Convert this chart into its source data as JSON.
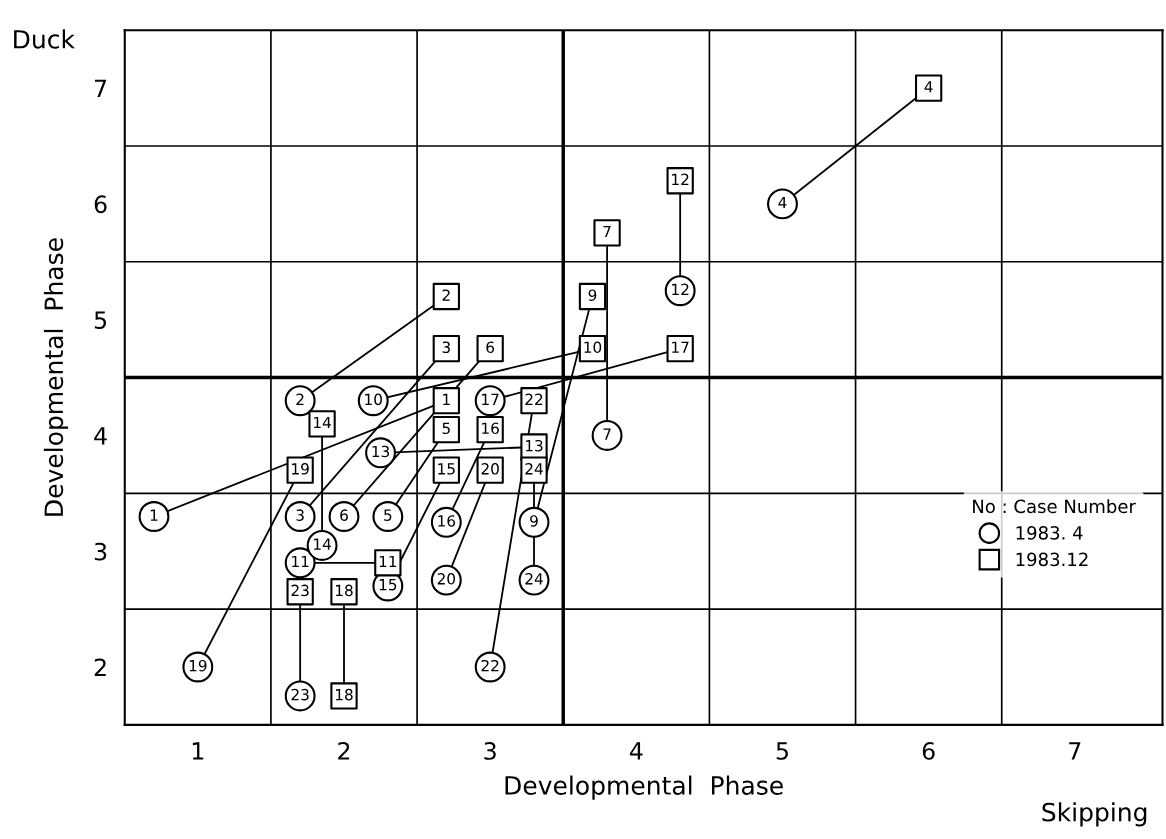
{
  "chart_data": {
    "type": "scatter",
    "xlabel": "Developmental  Phase",
    "ylabel": "Developmental  Phase",
    "legend_title": "No : Case Number",
    "annotations": [
      "Duck",
      "Skipping",
      {
        "text": "1",
        "x": 0.7,
        "y": 3.3
      },
      {
        "text": "2",
        "x": 1.7,
        "y": 4.3
      },
      {
        "text": "3",
        "x": 1.7,
        "y": 3.3
      },
      {
        "text": "4",
        "x": 5.0,
        "y": 6.0
      },
      {
        "text": "5",
        "x": 2.3,
        "y": 3.3
      },
      {
        "text": "6",
        "x": 2.0,
        "y": 3.3
      },
      {
        "text": "7",
        "x": 3.8,
        "y": 4.0
      },
      {
        "text": "9",
        "x": 3.3,
        "y": 3.25
      },
      {
        "text": "10",
        "x": 2.2,
        "y": 4.3
      },
      {
        "text": "11",
        "x": 1.7,
        "y": 2.9
      },
      {
        "text": "12",
        "x": 4.3,
        "y": 5.25
      },
      {
        "text": "13",
        "x": 2.25,
        "y": 3.85
      },
      {
        "text": "14",
        "x": 1.85,
        "y": 3.05
      },
      {
        "text": "15",
        "x": 2.3,
        "y": 2.7
      },
      {
        "text": "16",
        "x": 2.7,
        "y": 3.25
      },
      {
        "text": "17",
        "x": 3.0,
        "y": 4.3
      },
      {
        "text": "19",
        "x": 1.0,
        "y": 2.0
      },
      {
        "text": "20",
        "x": 2.7,
        "y": 2.75
      },
      {
        "text": "22",
        "x": 3.0,
        "y": 2.0
      },
      {
        "text": "23",
        "x": 1.7,
        "y": 1.75
      },
      {
        "text": "24",
        "x": 3.3,
        "y": 2.75
      },
      {
        "text": "1",
        "x": 2.7,
        "y": 4.3
      },
      {
        "text": "2",
        "x": 2.7,
        "y": 5.2
      },
      {
        "text": "3",
        "x": 2.7,
        "y": 4.75
      },
      {
        "text": "4",
        "x": 6.0,
        "y": 7.0
      },
      {
        "text": "5",
        "x": 2.7,
        "y": 4.05
      },
      {
        "text": "6",
        "x": 3.0,
        "y": 4.75
      },
      {
        "text": "7",
        "x": 3.8,
        "y": 5.75
      },
      {
        "text": "9",
        "x": 3.7,
        "y": 5.2
      },
      {
        "text": "10",
        "x": 3.7,
        "y": 4.75
      },
      {
        "text": "11",
        "x": 2.3,
        "y": 2.9
      },
      {
        "text": "12",
        "x": 4.3,
        "y": 6.2
      },
      {
        "text": "13",
        "x": 3.3,
        "y": 3.9
      },
      {
        "text": "14",
        "x": 1.85,
        "y": 4.1
      },
      {
        "text": "15",
        "x": 2.7,
        "y": 3.7
      },
      {
        "text": "16",
        "x": 3.0,
        "y": 4.05
      },
      {
        "text": "17",
        "x": 4.3,
        "y": 4.75
      },
      {
        "text": "18",
        "x": 2.0,
        "y": 2.65
      },
      {
        "text": "18",
        "x": 2.0,
        "y": 1.75
      },
      {
        "text": "19",
        "x": 1.7,
        "y": 3.7
      },
      {
        "text": "20",
        "x": 3.0,
        "y": 3.7
      },
      {
        "text": "22",
        "x": 3.3,
        "y": 4.3
      },
      {
        "text": "23",
        "x": 1.7,
        "y": 2.65
      },
      {
        "text": "24",
        "x": 3.3,
        "y": 3.7
      }
    ],
    "xlim": [
      0.5,
      7.6
    ],
    "ylim": [
      1.5,
      7.5
    ],
    "xticks": [
      1,
      {
        "value": 1.5,
        "label": null
      },
      2,
      {
        "value": 2.5,
        "label": null
      },
      3,
      {
        "value": 3.5,
        "label": null
      },
      4,
      {
        "value": 4.5,
        "label": null
      },
      5,
      {
        "value": 5.5,
        "label": null
      },
      6,
      {
        "value": 6.5,
        "label": null
      },
      7
    ],
    "yticks": [
      2,
      {
        "value": 2.5,
        "label": null
      },
      3,
      {
        "value": 3.5,
        "label": null
      },
      4,
      {
        "value": 4.5,
        "label": null
      },
      5,
      {
        "value": 5.5,
        "label": null
      },
      6,
      {
        "value": 6.5,
        "label": null
      },
      7
    ],
    "grid": true,
    "legend": "bottom right",
    "ref_lines": [
      {
        "axis": "x",
        "value": 3.5,
        "color": "#000000"
      },
      {
        "axis": "y",
        "value": 4.5,
        "color": "#000000"
      }
    ],
    "series": [
      {
        "type": "line",
        "color": "#000000",
        "marker": "none",
        "x": [
          0.7,
          2.7
        ],
        "values": [
          3.3,
          4.3
        ]
      },
      {
        "type": "line",
        "color": "#000000",
        "marker": "none",
        "x": [
          1.7,
          2.7
        ],
        "values": [
          4.3,
          5.2
        ]
      },
      {
        "type": "line",
        "color": "#000000",
        "marker": "none",
        "x": [
          1.7,
          2.7
        ],
        "values": [
          3.3,
          4.75
        ]
      },
      {
        "type": "line",
        "color": "#000000",
        "marker": "none",
        "x": [
          5.0,
          6.0
        ],
        "values": [
          6.0,
          7.0
        ]
      },
      {
        "type": "line",
        "color": "#000000",
        "marker": "none",
        "x": [
          2.3,
          2.7
        ],
        "values": [
          3.3,
          4.05
        ]
      },
      {
        "type": "line",
        "color": "#000000",
        "marker": "none",
        "x": [
          2.0,
          3.0
        ],
        "values": [
          3.3,
          4.75
        ]
      },
      {
        "type": "line",
        "color": "#000000",
        "marker": "none",
        "x": [
          3.8,
          3.8
        ],
        "values": [
          4.0,
          5.75
        ]
      },
      {
        "type": "line",
        "color": "#000000",
        "marker": "none",
        "x": [
          3.3,
          3.7
        ],
        "values": [
          3.25,
          5.2
        ]
      },
      {
        "type": "line",
        "color": "#000000",
        "marker": "none",
        "x": [
          2.2,
          3.7
        ],
        "values": [
          4.3,
          4.75
        ]
      },
      {
        "type": "line",
        "color": "#000000",
        "marker": "none",
        "x": [
          1.7,
          2.3
        ],
        "values": [
          2.9,
          2.9
        ]
      },
      {
        "type": "line",
        "color": "#000000",
        "marker": "none",
        "x": [
          4.3,
          4.3
        ],
        "values": [
          5.25,
          6.2
        ]
      },
      {
        "type": "line",
        "color": "#000000",
        "marker": "none",
        "x": [
          2.25,
          3.3
        ],
        "values": [
          3.85,
          3.9
        ]
      },
      {
        "type": "line",
        "color": "#000000",
        "marker": "none",
        "x": [
          1.85,
          1.85
        ],
        "values": [
          3.05,
          4.1
        ]
      },
      {
        "type": "line",
        "color": "#000000",
        "marker": "none",
        "x": [
          2.3,
          2.7
        ],
        "values": [
          2.7,
          3.7
        ]
      },
      {
        "type": "line",
        "color": "#000000",
        "marker": "none",
        "x": [
          2.7,
          3.0
        ],
        "values": [
          3.25,
          4.05
        ]
      },
      {
        "type": "line",
        "color": "#000000",
        "marker": "none",
        "x": [
          3.0,
          4.3
        ],
        "values": [
          4.3,
          4.75
        ]
      },
      {
        "type": "line",
        "color": "#000000",
        "marker": "none",
        "x": [
          2.0,
          2.0
        ],
        "values": [
          1.75,
          2.65
        ]
      },
      {
        "type": "line",
        "color": "#000000",
        "marker": "none",
        "x": [
          1.0,
          1.7
        ],
        "values": [
          2.0,
          3.7
        ]
      },
      {
        "type": "line",
        "color": "#000000",
        "marker": "none",
        "x": [
          2.7,
          3.0
        ],
        "values": [
          2.75,
          3.7
        ]
      },
      {
        "type": "line",
        "color": "#000000",
        "marker": "none",
        "x": [
          3.0,
          3.3
        ],
        "values": [
          2.0,
          4.3
        ]
      },
      {
        "type": "line",
        "color": "#000000",
        "marker": "none",
        "x": [
          1.7,
          1.7
        ],
        "values": [
          1.75,
          2.65
        ]
      },
      {
        "type": "line",
        "color": "#000000",
        "marker": "none",
        "x": [
          3.3,
          3.3
        ],
        "values": [
          2.75,
          3.7
        ]
      },
      {
        "name": "1983. 4",
        "color": "#000000",
        "marker": "circle",
        "x": [
          0.7,
          1.7,
          1.7,
          5.0,
          2.3,
          2.0,
          3.8,
          3.3,
          2.2,
          1.7,
          4.3,
          2.25,
          1.85,
          2.3,
          2.7,
          3.0,
          1.0,
          2.7,
          3.0,
          1.7,
          3.3
        ],
        "values": [
          3.3,
          4.3,
          3.3,
          6.0,
          3.3,
          3.3,
          4.0,
          3.25,
          4.3,
          2.9,
          5.25,
          3.85,
          3.05,
          2.7,
          3.25,
          4.3,
          2.0,
          2.75,
          2.0,
          1.75,
          2.75
        ]
      },
      {
        "name": "1983.12",
        "color": "#000000",
        "marker": "square",
        "x": [
          2.7,
          2.7,
          2.7,
          6.0,
          2.7,
          3.0,
          3.8,
          3.7,
          3.7,
          2.3,
          4.3,
          3.3,
          1.85,
          2.7,
          3.0,
          4.3,
          2.0,
          2.0,
          1.7,
          3.0,
          3.3,
          1.7,
          3.3
        ],
        "values": [
          4.3,
          5.2,
          4.75,
          7.0,
          4.05,
          4.75,
          5.75,
          5.2,
          4.75,
          2.9,
          6.2,
          3.9,
          4.1,
          3.7,
          4.05,
          4.75,
          2.65,
          1.75,
          3.7,
          3.7,
          4.3,
          2.65,
          3.7
        ]
      }
    ]
  }
}
